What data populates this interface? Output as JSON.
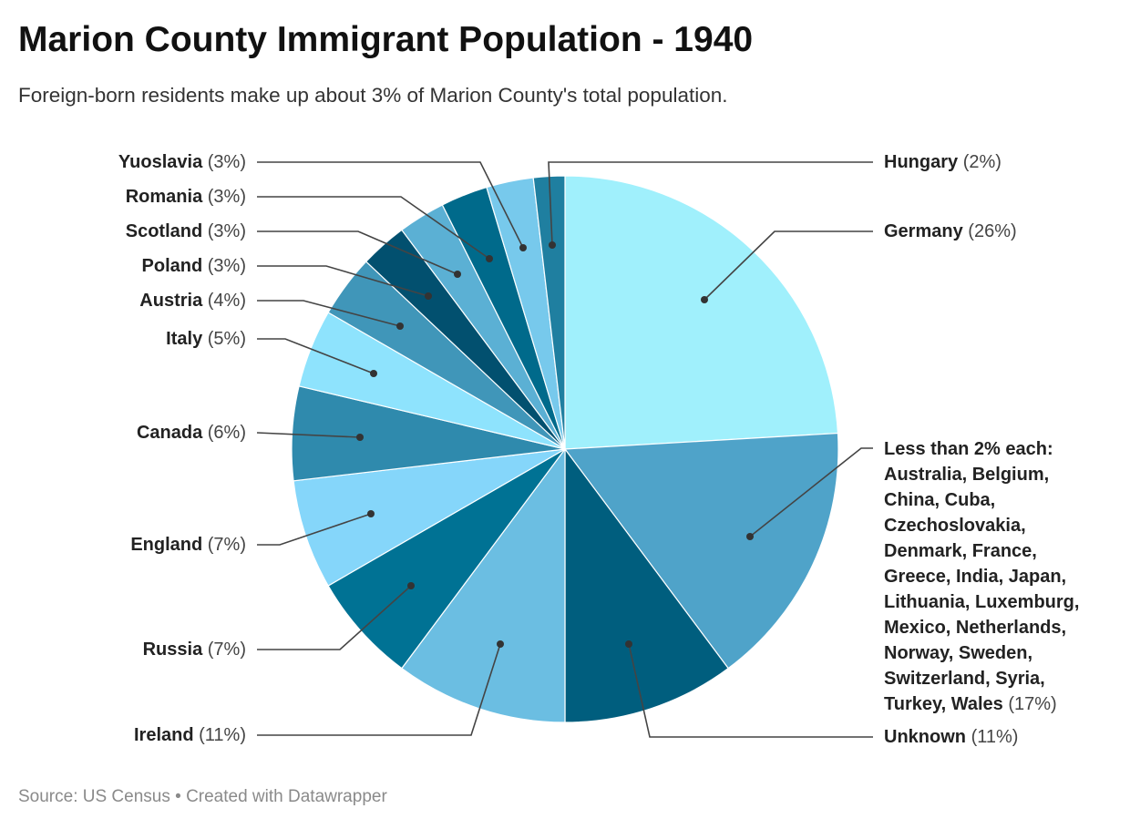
{
  "title": "Marion County Immigrant Population - 1940",
  "subtitle": "Foreign-born residents make up about 3% of Marion County's total population.",
  "footer": "Source: US Census • Created with Datawrapper",
  "chart_data": {
    "type": "pie",
    "title": "Marion County Immigrant Population - 1940",
    "slices": [
      {
        "label": "Germany",
        "pct_label": "(26%)",
        "value": 26,
        "color": "#a0f0fc"
      },
      {
        "label": "Less than 2% each: Australia, Belgium, China, Cuba, Czechoslovakia, Denmark, France, Greece, India, Japan, Lithuania, Luxemburg, Mexico, Netherlands, Norway, Sweden, Switzerland, Syria, Turkey, Wales",
        "pct_label": "(17%)",
        "value": 17,
        "color": "#4fa3c9"
      },
      {
        "label": "Unknown",
        "pct_label": "(11%)",
        "value": 11,
        "color": "#005e7e"
      },
      {
        "label": "Ireland",
        "pct_label": "(11%)",
        "value": 11,
        "color": "#6bbee2"
      },
      {
        "label": "Russia",
        "pct_label": "(7%)",
        "value": 7,
        "color": "#007294"
      },
      {
        "label": "England",
        "pct_label": "(7%)",
        "value": 7,
        "color": "#85d6fa"
      },
      {
        "label": "Canada",
        "pct_label": "(6%)",
        "value": 6,
        "color": "#2f8aad"
      },
      {
        "label": "Italy",
        "pct_label": "(5%)",
        "value": 5,
        "color": "#8ee3fd"
      },
      {
        "label": "Austria",
        "pct_label": "(4%)",
        "value": 4,
        "color": "#4096b9"
      },
      {
        "label": "Poland",
        "pct_label": "(3%)",
        "value": 3,
        "color": "#02506f"
      },
      {
        "label": "Scotland",
        "pct_label": "(3%)",
        "value": 3,
        "color": "#5bb0d4"
      },
      {
        "label": "Romania",
        "pct_label": "(3%)",
        "value": 3,
        "color": "#006a8b"
      },
      {
        "label": "Yuoslavia",
        "pct_label": "(3%)",
        "value": 3,
        "color": "#77c9ec"
      },
      {
        "label": "Hungary",
        "pct_label": "(2%)",
        "value": 2,
        "color": "#1f7fa0"
      }
    ]
  }
}
